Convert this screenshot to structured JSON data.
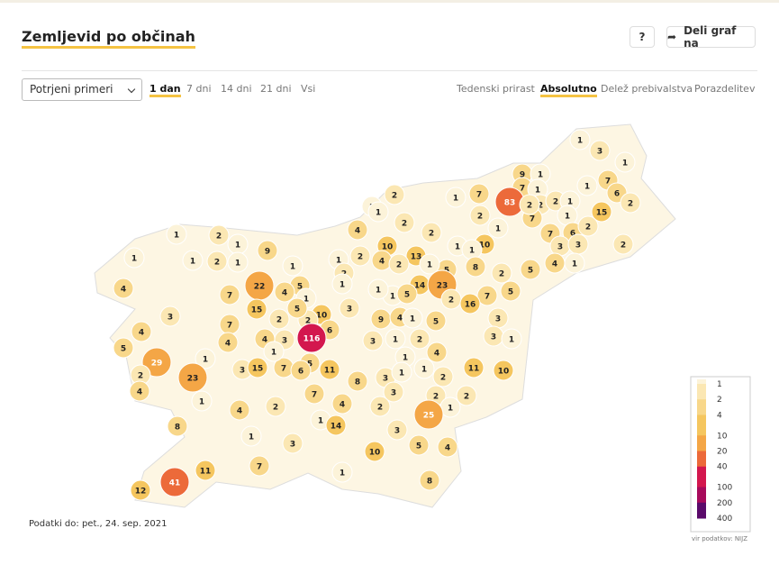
{
  "header": {
    "title": "Zemljevid po občinah",
    "help": "?",
    "share": "Deli graf na"
  },
  "controls": {
    "select": "Potrjeni primeri",
    "periods": [
      "1 dan",
      "7 dni",
      "14 dni",
      "21 dni",
      "Vsi"
    ],
    "active_period": 0,
    "modes": [
      "Tedenski prirast",
      "Absolutno",
      "Delež prebivalstva",
      "Porazdelitev"
    ],
    "active_mode": 1
  },
  "map": {
    "values": [
      1,
      3,
      1,
      9,
      1,
      7,
      1,
      1,
      7,
      6,
      2,
      7,
      83,
      2,
      2,
      1,
      15,
      2,
      1,
      1,
      1,
      2,
      7,
      1,
      6,
      2,
      2,
      2,
      4,
      2,
      1,
      7,
      3,
      3,
      2,
      1,
      2,
      1,
      9,
      1,
      1,
      2,
      1,
      10,
      13,
      4,
      2,
      10,
      1,
      1,
      2,
      1,
      2,
      5,
      2,
      4,
      1,
      8,
      5,
      1,
      1,
      1,
      5,
      4,
      22,
      7,
      15,
      1,
      14,
      23,
      5,
      1,
      5,
      7,
      2,
      16,
      1,
      4,
      3,
      10,
      3,
      2,
      2,
      5,
      9,
      4,
      1,
      5,
      3,
      7,
      6,
      116,
      3,
      1,
      2,
      4,
      3,
      1,
      5,
      4,
      4,
      3,
      4,
      29,
      1,
      3,
      15,
      7,
      1,
      5,
      11,
      1,
      2,
      23,
      6,
      8,
      3,
      1,
      1,
      2,
      11,
      10,
      4,
      1,
      7,
      4,
      3,
      2,
      2,
      1,
      4,
      2,
      2,
      25,
      1,
      14,
      8,
      3,
      1,
      3,
      5,
      4,
      10,
      7,
      11,
      1,
      8,
      41,
      12
    ],
    "legend": {
      "ticks": [
        1,
        2,
        4,
        10,
        20,
        40,
        100,
        200,
        400
      ],
      "colors": [
        "#fcf3d9",
        "#fbe7b3",
        "#f8d78a",
        "#f5c65f",
        "#f4a646",
        "#ec6a3a",
        "#d3174e",
        "#a70a5b",
        "#5a0a6a"
      ]
    },
    "footnote": "Podatki do: pet., 24. sep. 2021",
    "source": "vir podatkov: NIJZ"
  }
}
